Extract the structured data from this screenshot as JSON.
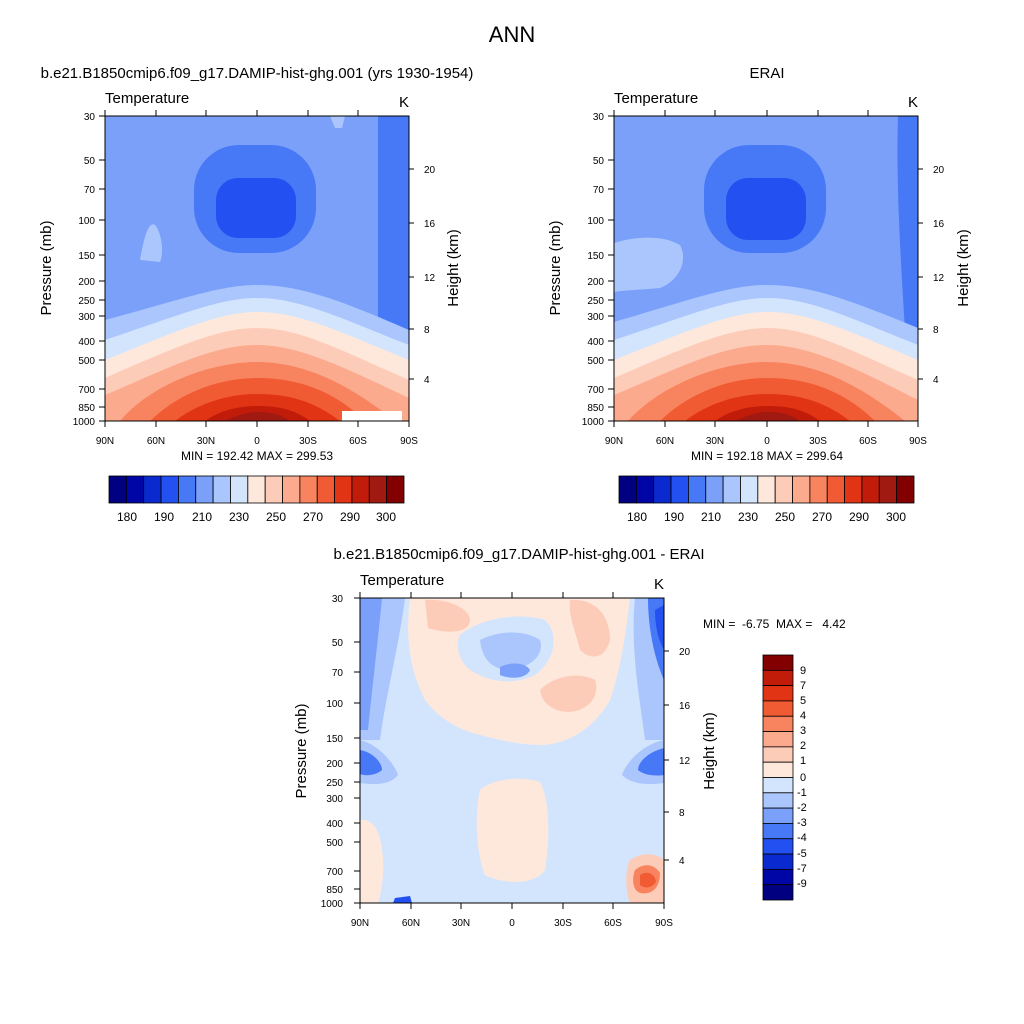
{
  "figure_title": "ANN",
  "colors": {
    "abs_levels": [
      "#000080",
      "#0006a6",
      "#0a2ad0",
      "#2350f0",
      "#4778f6",
      "#7aa0fa",
      "#abc6fc",
      "#d3e5fd",
      "#fee8dc",
      "#fdccb8",
      "#fbaa8d",
      "#f8845f",
      "#f05b34",
      "#e13414",
      "#c11b0a",
      "#a11a12",
      "#820000"
    ],
    "diff_levels": [
      "#000080",
      "#0006a6",
      "#0a2ad0",
      "#2350f0",
      "#4778f6",
      "#7aa0fa",
      "#abc6fc",
      "#d3e5fd",
      "#fee8dc",
      "#fdccb8",
      "#fbaa8d",
      "#f8845f",
      "#f05b34",
      "#e13414",
      "#c11b0a",
      "#820000"
    ]
  },
  "chart_data": [
    {
      "type": "heatmap",
      "title": "b.e21.B1850cmip6.f09_g17.DAMIP-hist-ghg.001 (yrs 1930-1954)",
      "left_label": "Temperature",
      "right_label": "K",
      "xlabel": "",
      "ylabel": "Pressure (mb)",
      "ylabel_right": "Height (km)",
      "x_ticks": [
        "90N",
        "60N",
        "30N",
        "0",
        "30S",
        "60S",
        "90S"
      ],
      "y_ticks": [
        "30",
        "50",
        "70",
        "100",
        "150",
        "200",
        "250",
        "300",
        "400",
        "500",
        "700",
        "850",
        "1000"
      ],
      "y_right_ticks": [
        "20",
        "16",
        "12",
        "8",
        "4"
      ],
      "stats": "MIN = 192.42  MAX = 299.53",
      "min": 192.42,
      "max": 299.53,
      "colorbar_labels": [
        "180",
        "190",
        "210",
        "230",
        "250",
        "270",
        "290",
        "300"
      ]
    },
    {
      "type": "heatmap",
      "title": "ERAI",
      "left_label": "Temperature",
      "right_label": "K",
      "xlabel": "",
      "ylabel": "Pressure (mb)",
      "ylabel_right": "Height (km)",
      "x_ticks": [
        "90N",
        "60N",
        "30N",
        "0",
        "30S",
        "60S",
        "90S"
      ],
      "y_ticks": [
        "30",
        "50",
        "70",
        "100",
        "150",
        "200",
        "250",
        "300",
        "400",
        "500",
        "700",
        "850",
        "1000"
      ],
      "y_right_ticks": [
        "20",
        "16",
        "12",
        "8",
        "4"
      ],
      "stats": "MIN = 192.18  MAX = 299.64",
      "min": 192.18,
      "max": 299.64,
      "colorbar_labels": [
        "180",
        "190",
        "210",
        "230",
        "250",
        "270",
        "290",
        "300"
      ]
    },
    {
      "type": "heatmap",
      "title": "b.e21.B1850cmip6.f09_g17.DAMIP-hist-ghg.001 - ERAI",
      "left_label": "Temperature",
      "right_label": "K",
      "xlabel": "",
      "ylabel": "Pressure (mb)",
      "ylabel_right": "Height (km)",
      "x_ticks": [
        "90N",
        "60N",
        "30N",
        "0",
        "30S",
        "60S",
        "90S"
      ],
      "y_ticks": [
        "30",
        "50",
        "70",
        "100",
        "150",
        "200",
        "250",
        "300",
        "400",
        "500",
        "700",
        "850",
        "1000"
      ],
      "y_right_ticks": [
        "20",
        "16",
        "12",
        "8",
        "4"
      ],
      "stats": "MIN =  -6.75  MAX =   4.42",
      "min": -6.75,
      "max": 4.42,
      "colorbar_labels": [
        "9",
        "7",
        "5",
        "4",
        "3",
        "2",
        "1",
        "0",
        "-1",
        "-2",
        "-3",
        "-4",
        "-5",
        "-7",
        "-9"
      ]
    }
  ]
}
